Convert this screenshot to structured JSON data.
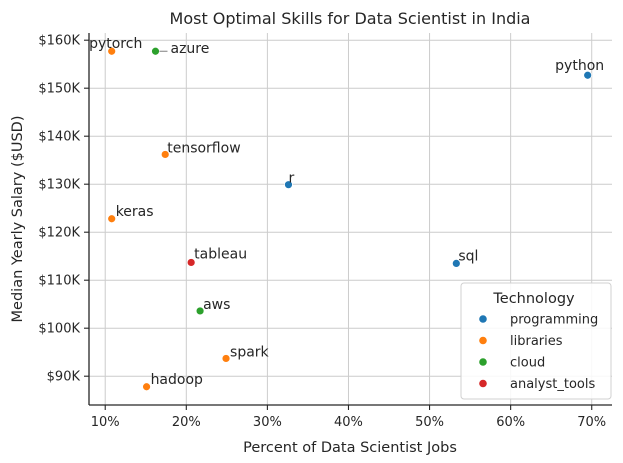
{
  "chart_data": {
    "type": "scatter",
    "title": "Most Optimal Skills for Data Scientist in India",
    "xlabel": "Percent of Data Scientist Jobs",
    "ylabel": "Median Yearly Salary ($USD)",
    "xlim": [
      8.0,
      72.5
    ],
    "ylim": [
      84000,
      161500
    ],
    "grid": true,
    "x_ticks": [
      10,
      20,
      30,
      40,
      50,
      60,
      70
    ],
    "x_tick_labels": [
      "10%",
      "20%",
      "30%",
      "40%",
      "50%",
      "60%",
      "70%"
    ],
    "y_ticks": [
      90000,
      100000,
      110000,
      120000,
      130000,
      140000,
      150000,
      160000
    ],
    "y_tick_labels": [
      "$90K",
      "$100K",
      "$110K",
      "$120K",
      "$130K",
      "$140K",
      "$150K",
      "$160K"
    ],
    "legend": {
      "title": "Technology",
      "placement": "bottom-right",
      "entries": [
        {
          "name": "programming",
          "color": "#1f77b4"
        },
        {
          "name": "libraries",
          "color": "#ff7f0e"
        },
        {
          "name": "cloud",
          "color": "#2ca02c"
        },
        {
          "name": "analyst_tools",
          "color": "#d62728"
        }
      ]
    },
    "points": [
      {
        "label": "python",
        "x": 69.5,
        "y": 152700,
        "group": "programming"
      },
      {
        "label": "sql",
        "x": 53.3,
        "y": 113500,
        "group": "programming"
      },
      {
        "label": "r",
        "x": 32.6,
        "y": 129900,
        "group": "programming"
      },
      {
        "label": "pytorch",
        "x": 10.8,
        "y": 157700,
        "group": "libraries"
      },
      {
        "label": "tensorflow",
        "x": 17.4,
        "y": 136200,
        "group": "libraries"
      },
      {
        "label": "keras",
        "x": 10.8,
        "y": 122800,
        "group": "libraries"
      },
      {
        "label": "spark",
        "x": 24.9,
        "y": 93700,
        "group": "libraries"
      },
      {
        "label": "hadoop",
        "x": 15.1,
        "y": 87800,
        "group": "libraries"
      },
      {
        "label": "azure",
        "x": 16.2,
        "y": 157700,
        "group": "cloud"
      },
      {
        "label": "aws",
        "x": 21.7,
        "y": 103600,
        "group": "cloud"
      },
      {
        "label": "tableau",
        "x": 20.6,
        "y": 113700,
        "group": "analyst_tools"
      }
    ]
  }
}
